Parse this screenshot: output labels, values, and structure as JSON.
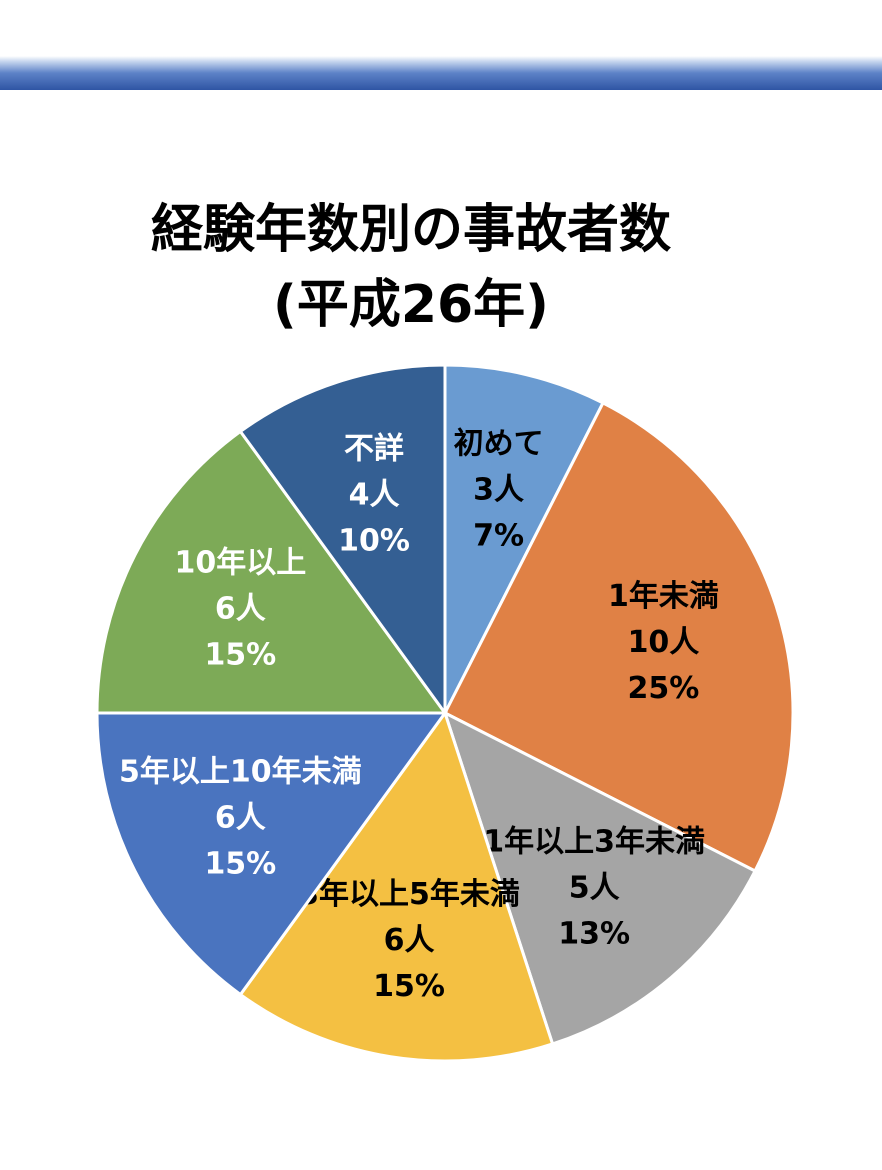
{
  "chart_data": {
    "type": "pie",
    "title": "経験年数別の事故者数",
    "subtitle": "(平成26年)",
    "slices": [
      {
        "label": "初めて",
        "count": "3人",
        "percent": "7%",
        "value": 3,
        "color": "#6a9bd1",
        "text_color": "#000000"
      },
      {
        "label": "1年未満",
        "count": "10人",
        "percent": "25%",
        "value": 10,
        "color": "#e08145",
        "text_color": "#000000"
      },
      {
        "label": "1年以上3年未満",
        "count": "5人",
        "percent": "13%",
        "value": 5,
        "color": "#a5a5a5",
        "text_color": "#000000"
      },
      {
        "label": "3年以上5年未満",
        "count": "6人",
        "percent": "15%",
        "value": 6,
        "color": "#f4c042",
        "text_color": "#000000"
      },
      {
        "label": "5年以上10年未満",
        "count": "6人",
        "percent": "15%",
        "value": 6,
        "color": "#4a74bf",
        "text_color": "#ffffff"
      },
      {
        "label": "10年以上",
        "count": "6人",
        "percent": "15%",
        "value": 6,
        "color": "#7daa57",
        "text_color": "#ffffff"
      },
      {
        "label": "不詳",
        "count": "4人",
        "percent": "10%",
        "value": 4,
        "color": "#345f93",
        "text_color": "#ffffff"
      }
    ]
  }
}
